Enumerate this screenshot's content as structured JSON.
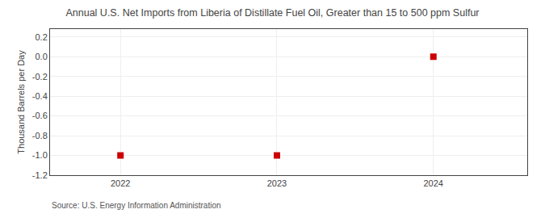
{
  "chart_data": {
    "type": "scatter",
    "title": "Annual U.S. Net Imports from Liberia of Distillate Fuel Oil, Greater than 15 to 500 ppm Sulfur",
    "ylabel": "Thousand Barrels per Day",
    "source": "Source: U.S. Energy Information Administration",
    "x": [
      2022,
      2023,
      2024
    ],
    "values": [
      -1.0,
      -1.0,
      0.0
    ],
    "color": "#cc0000",
    "marker": "square",
    "xlim": [
      2021.55,
      2024.6
    ],
    "ylim": [
      -1.2,
      0.28
    ],
    "xticks": [
      2022,
      2023,
      2024
    ],
    "yticks": [
      0.2,
      {
        "value": 0.0,
        "label": "0.0"
      },
      -0.2,
      -0.4,
      -0.6,
      -0.8,
      {
        "value": -1.0,
        "label": "-1.0"
      },
      -1.2
    ],
    "grid": true
  }
}
